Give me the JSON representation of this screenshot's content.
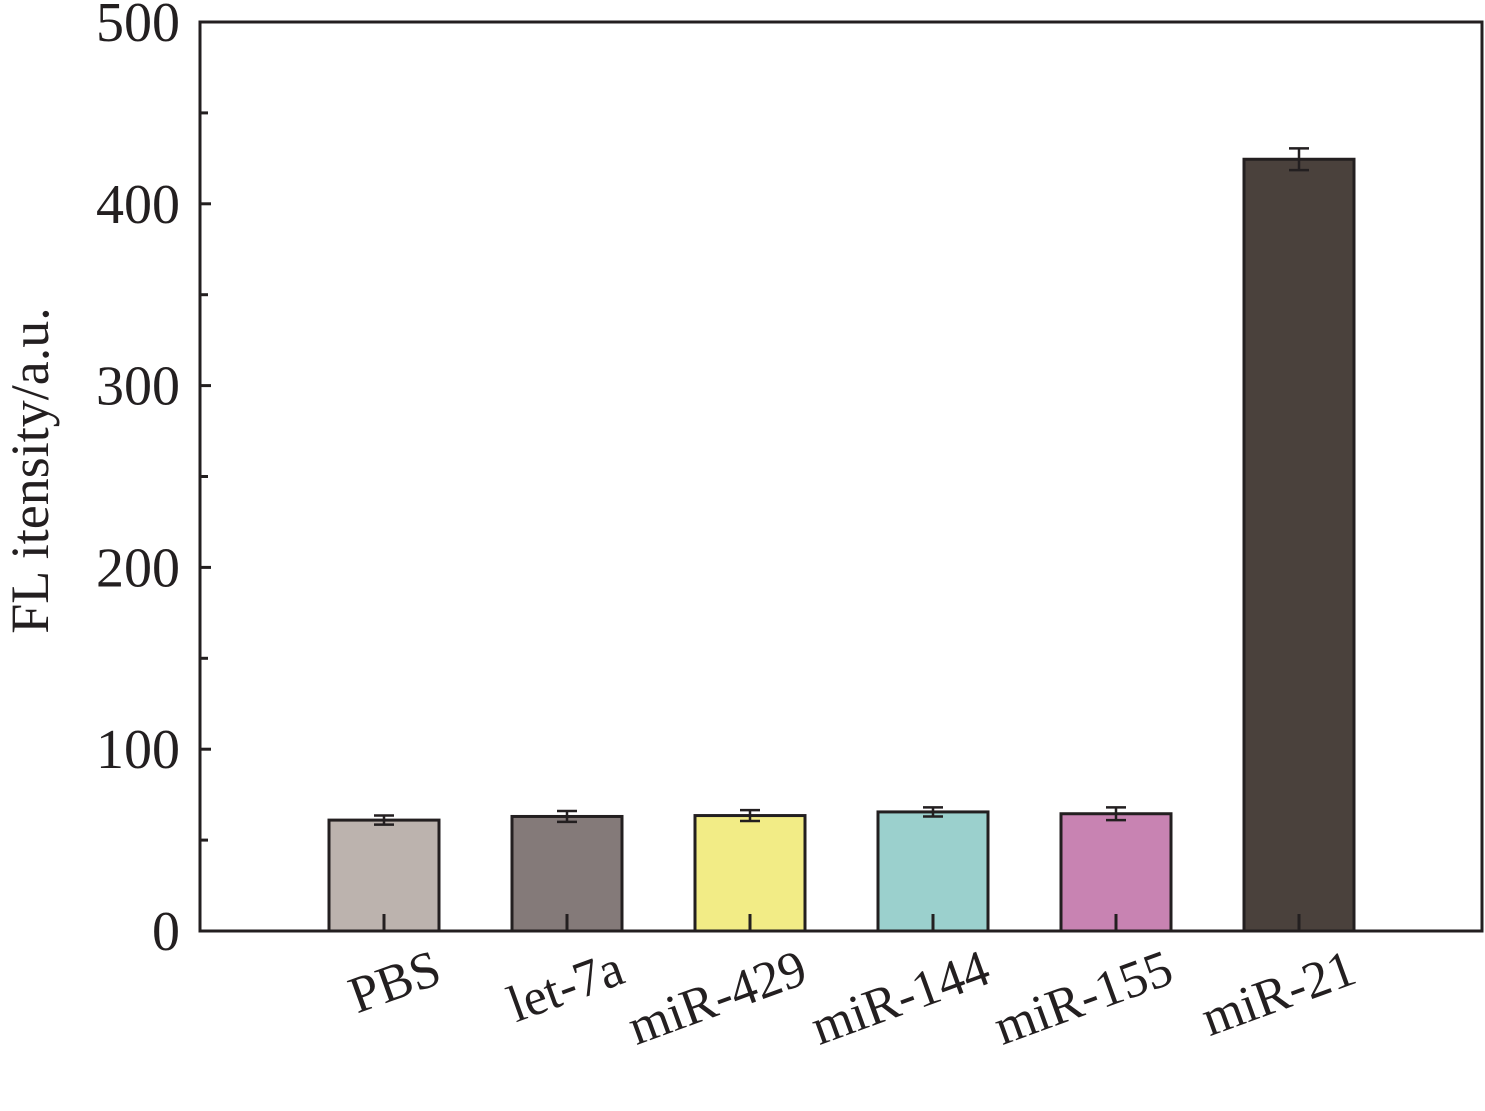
{
  "chart_data": {
    "type": "bar",
    "categories": [
      "PBS",
      "let-7a",
      "miR-429",
      "miR-144",
      "miR-155",
      "miR-21"
    ],
    "values": [
      61,
      63,
      63.5,
      65.5,
      64.5,
      424.5
    ],
    "errors": [
      2.5,
      3,
      3,
      2.5,
      3.5,
      6
    ],
    "colors": [
      "#bcb3ae",
      "#847a79",
      "#f2ec86",
      "#9bd0cd",
      "#c883b2",
      "#4a413c"
    ],
    "xlabel": "",
    "ylabel": "FL itensity/a.u.",
    "ylim": [
      0,
      500
    ],
    "yticks": [
      0,
      100,
      200,
      300,
      400,
      500
    ],
    "yticks_minor": [
      50,
      150,
      250,
      350,
      450
    ],
    "grid": false,
    "legend": "none"
  }
}
